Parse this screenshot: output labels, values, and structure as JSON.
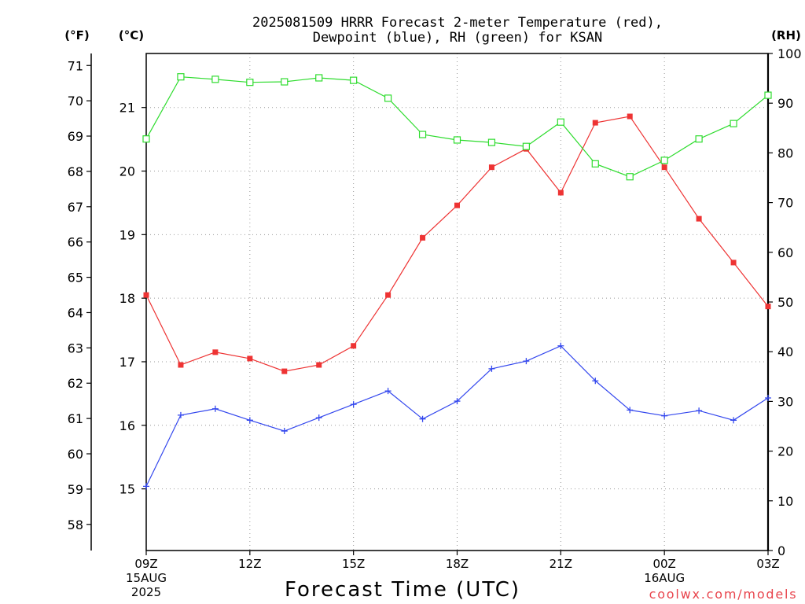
{
  "chart_data": {
    "type": "line",
    "title": "2025081509 HRRR Forecast 2-meter Temperature (red),",
    "title_line2": "Dewpoint (blue), RH (green) for KSAN",
    "xlabel": "Forecast Time (UTC)",
    "x": [
      "09Z",
      "10Z",
      "11Z",
      "12Z",
      "13Z",
      "14Z",
      "15Z",
      "16Z",
      "17Z",
      "18Z",
      "19Z",
      "20Z",
      "21Z",
      "22Z",
      "23Z",
      "00Z",
      "01Z",
      "02Z",
      "03Z"
    ],
    "x_ticks": [
      {
        "label": "09Z",
        "date": "15AUG",
        "year": "2025"
      },
      {
        "label": "12Z"
      },
      {
        "label": "15Z"
      },
      {
        "label": "18Z"
      },
      {
        "label": "21Z"
      },
      {
        "label": "00Z",
        "date": "16AUG"
      },
      {
        "label": "03Z"
      }
    ],
    "y_axes": [
      {
        "label": "(°F)",
        "ticks": [
          58,
          59,
          60,
          61,
          62,
          63,
          64,
          65,
          66,
          67,
          68,
          69,
          70,
          71
        ],
        "range": [
          57.26,
          71.34
        ]
      },
      {
        "label": "(°C)",
        "ticks": [
          15,
          16,
          17,
          18,
          19,
          20,
          21
        ],
        "range": [
          14.03,
          21.85
        ]
      },
      {
        "label": "(RH)",
        "ticks": [
          0,
          10,
          20,
          30,
          40,
          50,
          60,
          70,
          80,
          90,
          100
        ],
        "range": [
          0,
          100
        ]
      }
    ],
    "grid": true,
    "series": [
      {
        "y_axis": 1,
        "color": "#ee3333",
        "marker": "filled-square",
        "values": [
          18.05,
          16.95,
          17.15,
          17.05,
          16.85,
          16.95,
          17.25,
          18.05,
          18.95,
          19.46,
          20.06,
          20.35,
          19.66,
          20.76,
          20.86,
          20.06,
          19.25,
          18.56,
          17.87
        ]
      },
      {
        "y_axis": 1,
        "color": "#3347ee",
        "marker": "plus",
        "values": [
          15.04,
          16.16,
          16.26,
          16.08,
          15.91,
          16.12,
          16.33,
          16.54,
          16.1,
          16.38,
          16.89,
          17.01,
          17.25,
          16.7,
          16.24,
          16.15,
          16.23,
          16.08,
          16.43
        ]
      },
      {
        "y_axis": 2,
        "color": "#2edc2e",
        "marker": "open-square",
        "values": [
          82.8,
          95.3,
          94.8,
          94.2,
          94.3,
          95.1,
          94.6,
          91.0,
          83.7,
          82.6,
          82.1,
          81.3,
          86.2,
          77.8,
          75.2,
          78.5,
          82.8,
          85.9,
          91.6
        ]
      }
    ]
  },
  "credit": "coolwx.com/models"
}
